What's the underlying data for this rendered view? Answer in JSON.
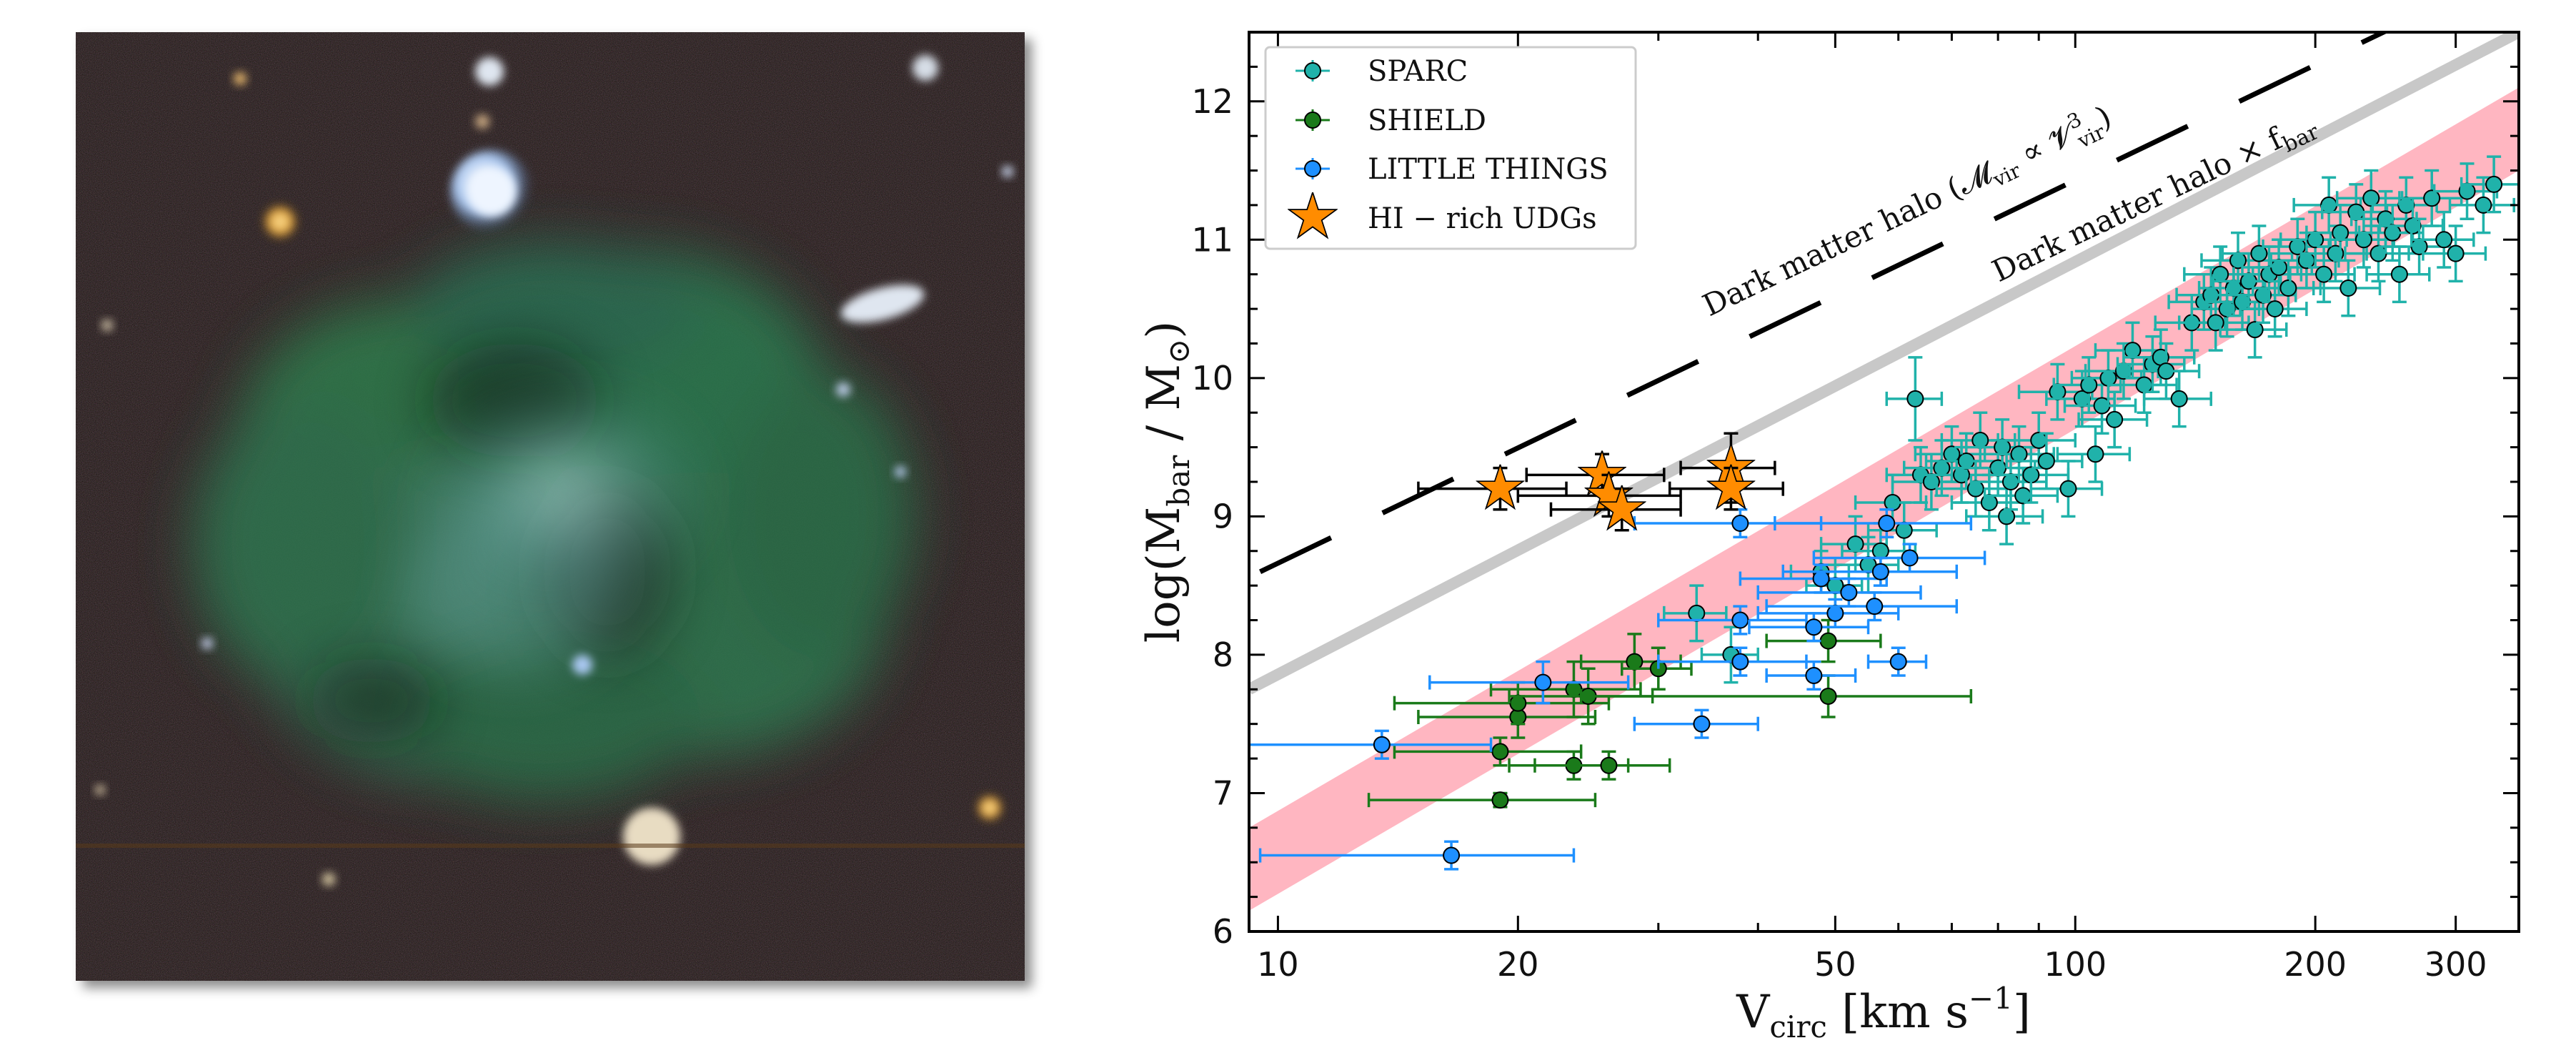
{
  "image_panel": {
    "description_icon": "galaxy-image"
  },
  "chart_data": {
    "type": "scatter",
    "xscale": "log",
    "xlim": [
      9.2,
      360
    ],
    "ylim": [
      6,
      12.5
    ],
    "xticks": [
      10,
      20,
      50,
      100,
      200,
      300
    ],
    "xtick_labels": [
      "10",
      "20",
      "50",
      "100",
      "200",
      "300"
    ],
    "yticks": [
      6,
      7,
      8,
      9,
      10,
      11,
      12
    ],
    "ytick_labels": [
      "6",
      "7",
      "8",
      "9",
      "10",
      "11",
      "12"
    ],
    "xlabel": {
      "main": "V",
      "sub": "circ",
      "rest": " [km s",
      "sup": "−1",
      "end": "]"
    },
    "ylabel": {
      "pre": "log(M",
      "sub": "bar",
      "mid": " / M",
      "sub2": "⊙",
      "end": ")"
    },
    "legend_position": "top-left",
    "legend": [
      {
        "label": "SPARC",
        "color": "#20b2aa",
        "marker": "circle"
      },
      {
        "label": "SHIELD",
        "color": "#1a7a1a",
        "marker": "circle"
      },
      {
        "label": "LITTLE THINGS",
        "color": "#1e90ff",
        "marker": "circle"
      },
      {
        "label": "HI − rich UDGs",
        "color": "#ff8c00",
        "marker": "star"
      }
    ],
    "annotations": {
      "halo_label": "Dark matter halo (𝓜",
      "halo_label_sub": "vir",
      "halo_label_mid": " ∝ 𝓥",
      "halo_label_sup": "3",
      "halo_label_sub2": "vir",
      "halo_label_end": ")",
      "baryon_label": "Dark matter halo × f",
      "baryon_label_sub": "bar"
    },
    "lines": {
      "halo_dashed": {
        "x": [
          9.5,
          360
        ],
        "y": [
          8.6,
          12.97
        ]
      },
      "halo_baryon_solid": {
        "x": [
          9.2,
          360
        ],
        "y": [
          7.75,
          12.5
        ]
      },
      "band_center": {
        "x": [
          9.2,
          360
        ],
        "y": [
          6.45,
          11.8
        ]
      },
      "band_halfwidth_dex": 0.3
    },
    "series": [
      {
        "name": "SPARC",
        "color": "#20b2aa",
        "points": [
          [
            33.5,
            8.3,
            3,
            0.2
          ],
          [
            37,
            8.0,
            3,
            0.2
          ],
          [
            48,
            8.6,
            4,
            0.15
          ],
          [
            50,
            8.5,
            4,
            0.15
          ],
          [
            53,
            8.8,
            5,
            0.2
          ],
          [
            55,
            8.65,
            5,
            0.2
          ],
          [
            57,
            8.75,
            6,
            0.2
          ],
          [
            59,
            9.1,
            6,
            0.2
          ],
          [
            61,
            8.9,
            6,
            0.2
          ],
          [
            63,
            9.85,
            5,
            0.3
          ],
          [
            64,
            9.3,
            6,
            0.2
          ],
          [
            66,
            9.25,
            7,
            0.2
          ],
          [
            68,
            9.35,
            7,
            0.2
          ],
          [
            70,
            9.45,
            7,
            0.2
          ],
          [
            72,
            9.3,
            8,
            0.2
          ],
          [
            73,
            9.4,
            8,
            0.2
          ],
          [
            75,
            9.2,
            8,
            0.2
          ],
          [
            76,
            9.55,
            8,
            0.2
          ],
          [
            78,
            9.1,
            8,
            0.2
          ],
          [
            80,
            9.35,
            9,
            0.2
          ],
          [
            81,
            9.5,
            9,
            0.2
          ],
          [
            82,
            9.0,
            9,
            0.2
          ],
          [
            83,
            9.25,
            9,
            0.2
          ],
          [
            85,
            9.45,
            9,
            0.2
          ],
          [
            86,
            9.15,
            9,
            0.2
          ],
          [
            88,
            9.3,
            10,
            0.2
          ],
          [
            90,
            9.55,
            10,
            0.2
          ],
          [
            92,
            9.4,
            10,
            0.2
          ],
          [
            95,
            9.9,
            10,
            0.2
          ],
          [
            98,
            9.2,
            10,
            0.2
          ],
          [
            102,
            9.85,
            10,
            0.2
          ],
          [
            104,
            9.95,
            10,
            0.2
          ],
          [
            106,
            9.45,
            11,
            0.2
          ],
          [
            108,
            9.8,
            11,
            0.2
          ],
          [
            110,
            10.0,
            11,
            0.2
          ],
          [
            112,
            9.7,
            11,
            0.2
          ],
          [
            115,
            10.05,
            12,
            0.2
          ],
          [
            118,
            10.2,
            12,
            0.2
          ],
          [
            122,
            9.95,
            12,
            0.2
          ],
          [
            125,
            10.1,
            12,
            0.2
          ],
          [
            128,
            10.15,
            13,
            0.2
          ],
          [
            130,
            10.05,
            13,
            0.2
          ],
          [
            135,
            9.85,
            13,
            0.2
          ],
          [
            140,
            10.4,
            14,
            0.2
          ],
          [
            145,
            10.55,
            14,
            0.2
          ],
          [
            148,
            10.6,
            14,
            0.2
          ],
          [
            150,
            10.4,
            15,
            0.2
          ],
          [
            152,
            10.75,
            15,
            0.2
          ],
          [
            155,
            10.5,
            15,
            0.2
          ],
          [
            158,
            10.65,
            15,
            0.2
          ],
          [
            160,
            10.85,
            16,
            0.2
          ],
          [
            162,
            10.55,
            16,
            0.2
          ],
          [
            165,
            10.7,
            16,
            0.2
          ],
          [
            168,
            10.35,
            16,
            0.2
          ],
          [
            170,
            10.9,
            17,
            0.2
          ],
          [
            172,
            10.6,
            17,
            0.2
          ],
          [
            175,
            10.75,
            17,
            0.2
          ],
          [
            178,
            10.5,
            17,
            0.2
          ],
          [
            180,
            10.8,
            18,
            0.2
          ],
          [
            185,
            10.65,
            18,
            0.2
          ],
          [
            190,
            10.95,
            18,
            0.2
          ],
          [
            195,
            10.85,
            19,
            0.2
          ],
          [
            200,
            11.0,
            19,
            0.2
          ],
          [
            205,
            10.75,
            19,
            0.2
          ],
          [
            208,
            11.25,
            20,
            0.2
          ],
          [
            212,
            10.9,
            20,
            0.2
          ],
          [
            215,
            11.05,
            20,
            0.2
          ],
          [
            220,
            10.65,
            21,
            0.2
          ],
          [
            225,
            11.2,
            21,
            0.2
          ],
          [
            230,
            11.0,
            21,
            0.2
          ],
          [
            235,
            11.3,
            22,
            0.2
          ],
          [
            240,
            10.9,
            22,
            0.2
          ],
          [
            245,
            11.15,
            23,
            0.2
          ],
          [
            250,
            11.05,
            23,
            0.2
          ],
          [
            255,
            10.75,
            23,
            0.2
          ],
          [
            260,
            11.25,
            24,
            0.2
          ],
          [
            265,
            11.1,
            24,
            0.2
          ],
          [
            270,
            10.95,
            25,
            0.2
          ],
          [
            280,
            11.3,
            25,
            0.2
          ],
          [
            290,
            11.0,
            26,
            0.2
          ],
          [
            300,
            10.9,
            27,
            0.2
          ],
          [
            310,
            11.35,
            28,
            0.2
          ],
          [
            325,
            11.25,
            30,
            0.2
          ],
          [
            335,
            11.4,
            30,
            0.2
          ]
        ]
      },
      {
        "name": "SHIELD",
        "color": "#1a7a1a",
        "points": [
          [
            19,
            6.95,
            6,
            0.05
          ],
          [
            19,
            7.3,
            5,
            0.1
          ],
          [
            20,
            7.55,
            5,
            0.15
          ],
          [
            20,
            7.65,
            6,
            0.15
          ],
          [
            23.5,
            7.2,
            4,
            0.1
          ],
          [
            23.5,
            7.75,
            5,
            0.2
          ],
          [
            24.5,
            7.7,
            5,
            0.2
          ],
          [
            26,
            7.2,
            5,
            0.1
          ],
          [
            28,
            7.95,
            4,
            0.2
          ],
          [
            30,
            7.9,
            3,
            0.15
          ],
          [
            49,
            7.7,
            25,
            0.15
          ],
          [
            49,
            8.1,
            8,
            0.15
          ]
        ]
      },
      {
        "name": "LITTLE THINGS",
        "color": "#1e90ff",
        "points": [
          [
            13.5,
            7.35,
            5,
            0.1
          ],
          [
            16.5,
            6.55,
            7,
            0.1
          ],
          [
            21.5,
            7.8,
            6,
            0.15
          ],
          [
            34,
            7.5,
            6,
            0.1
          ],
          [
            38,
            7.95,
            8,
            0.1
          ],
          [
            38,
            8.25,
            8,
            0.1
          ],
          [
            38,
            8.95,
            10,
            0.1
          ],
          [
            47,
            7.85,
            6,
            0.1
          ],
          [
            47,
            8.2,
            8,
            0.1
          ],
          [
            48,
            8.55,
            10,
            0.1
          ],
          [
            50,
            8.3,
            10,
            0.1
          ],
          [
            52,
            8.45,
            12,
            0.1
          ],
          [
            56,
            8.35,
            15,
            0.1
          ],
          [
            57,
            8.6,
            14,
            0.1
          ],
          [
            58,
            8.95,
            16,
            0.1
          ],
          [
            60,
            7.95,
            5,
            0.1
          ],
          [
            62,
            8.7,
            15,
            0.1
          ]
        ]
      },
      {
        "name": "HI − rich UDGs",
        "color": "#ff8c00",
        "points": [
          [
            19,
            9.2,
            4,
            0.15
          ],
          [
            25.5,
            9.3,
            5,
            0.15
          ],
          [
            26,
            9.15,
            6,
            0.15
          ],
          [
            27,
            9.05,
            5,
            0.15
          ],
          [
            37,
            9.35,
            5,
            0.25
          ],
          [
            37,
            9.2,
            6,
            0.15
          ]
        ]
      }
    ]
  }
}
